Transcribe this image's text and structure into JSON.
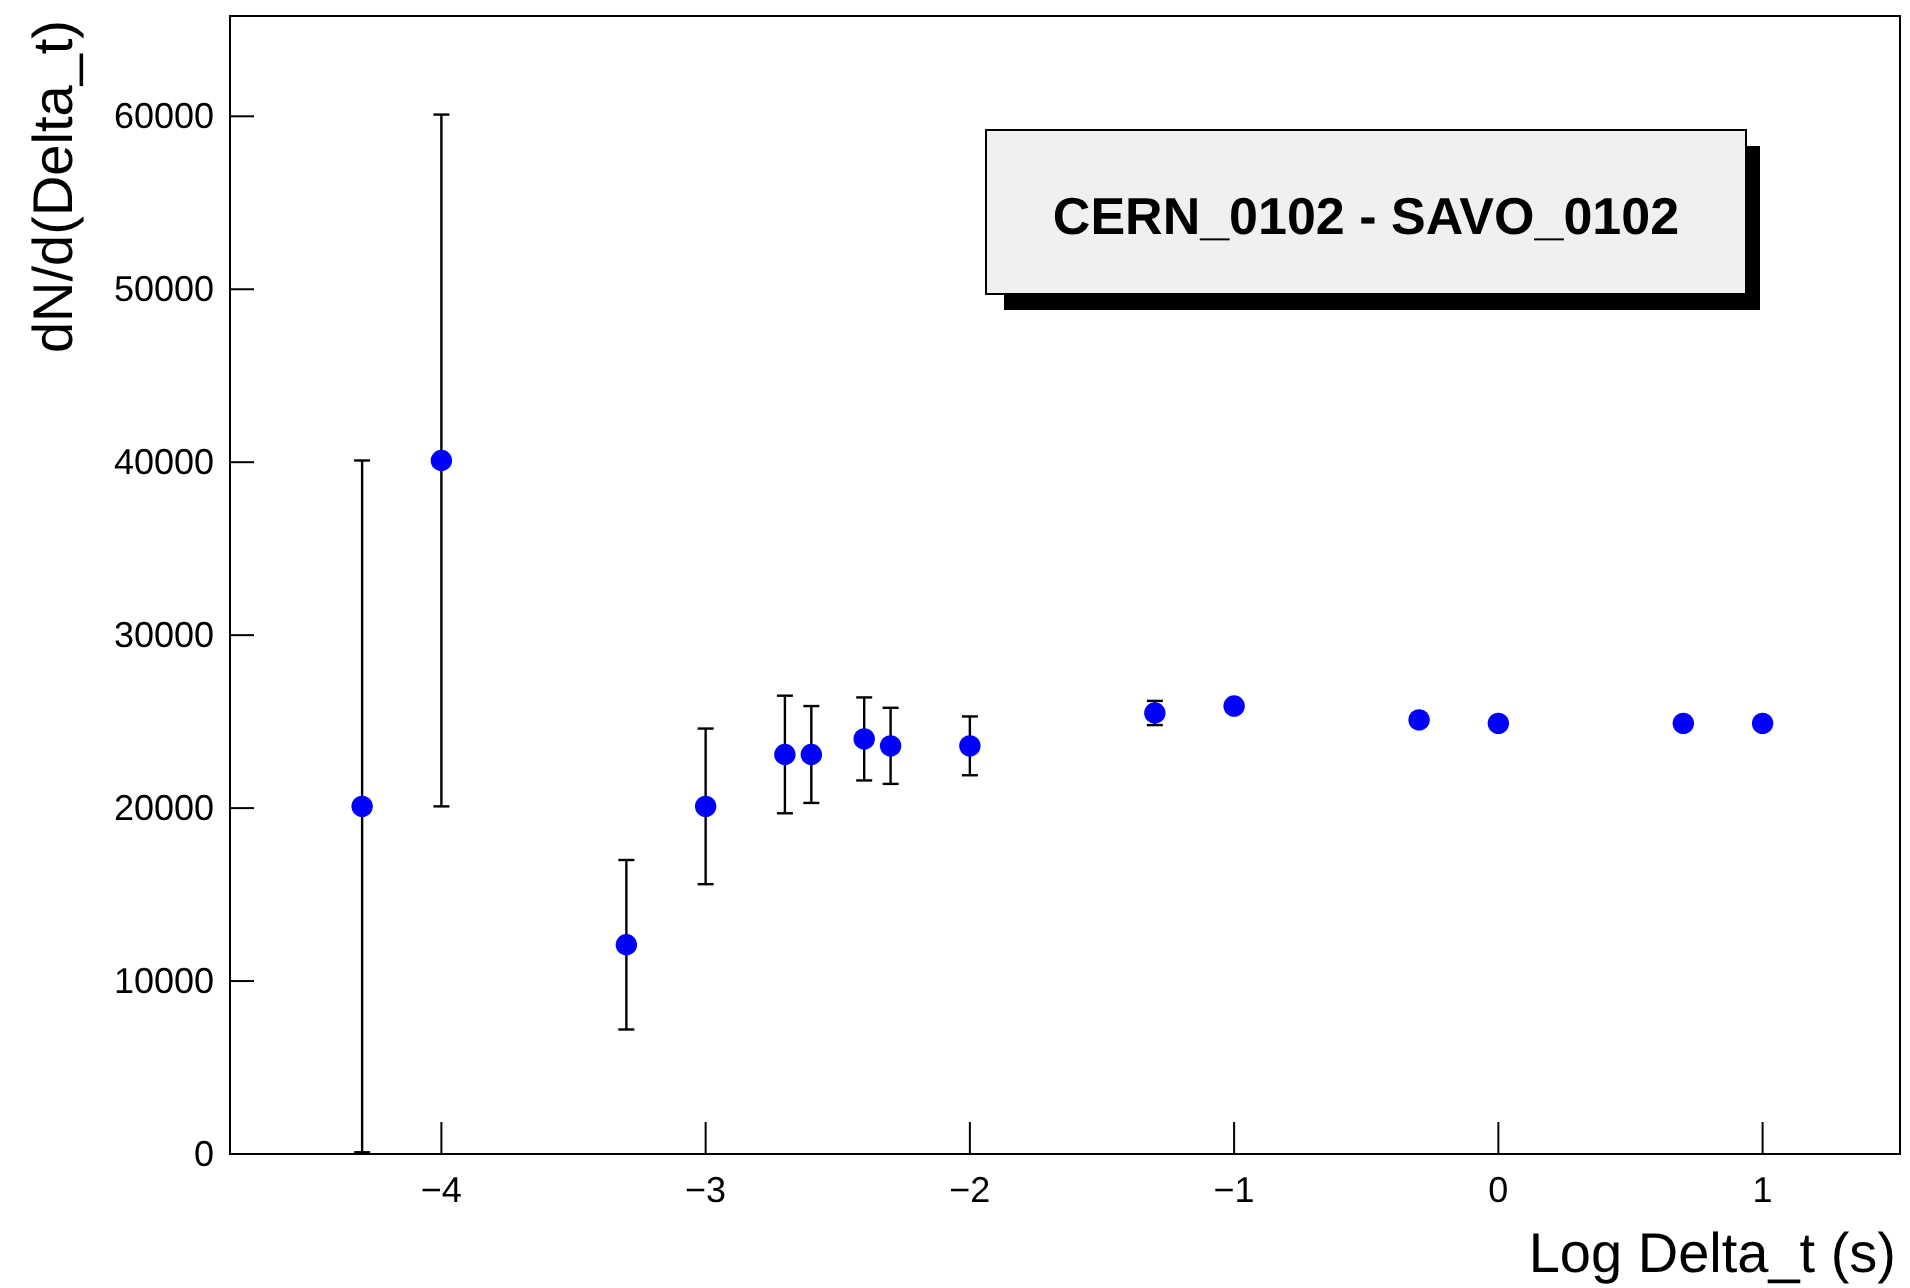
{
  "chart_data": {
    "type": "scatter",
    "title": "CERN_0102 - SAVO_0102",
    "xlabel": "Log Delta_t (s)",
    "ylabel": "dN/d(Delta_t)",
    "x": [
      -4.3,
      -4,
      -3.3,
      -3,
      -2.7,
      -2.6,
      -2.4,
      -2.3,
      -2,
      -1.3,
      -1,
      -0.3,
      0,
      0.7,
      1
    ],
    "series": [
      {
        "color": "#0000ff",
        "values": [
          20100,
          40100,
          12100,
          20100,
          23100,
          23100,
          24000,
          23600,
          23600,
          25500,
          25900,
          25100,
          24900,
          24900,
          24900
        ],
        "errors": [
          20000,
          20000,
          4900,
          4500,
          3400,
          2800,
          2400,
          2200,
          1700,
          700,
          null,
          null,
          null,
          null,
          null
        ]
      }
    ],
    "xlim": [
      -4.8,
      1.52
    ],
    "xticks": [
      -4,
      -3,
      -2,
      -1,
      0,
      1
    ],
    "ylim": [
      0,
      65800
    ],
    "yticks": [
      0,
      10000,
      20000,
      30000,
      40000,
      50000,
      60000
    ],
    "marker": "circle"
  }
}
